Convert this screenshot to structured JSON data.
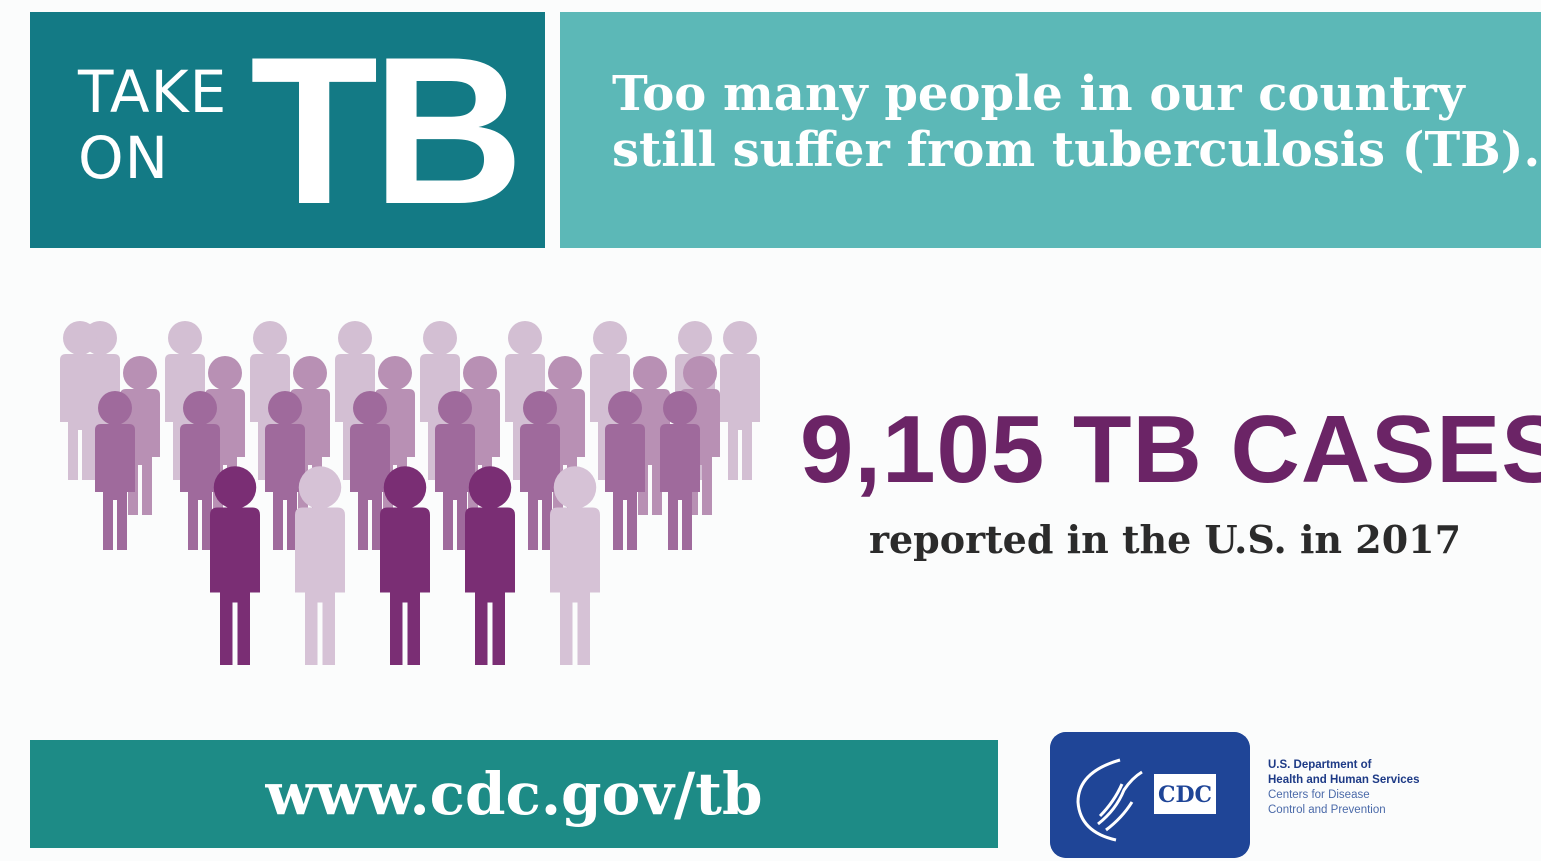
{
  "logo": {
    "take": "TAKE",
    "on": "ON",
    "tb": "TB"
  },
  "headline": {
    "line1": "Too many people in our country",
    "line2": "still suffer from tuberculosis (TB)."
  },
  "stat": {
    "headline": "9,105 TB CASES",
    "subtext": "reported in the U.S. in 2017"
  },
  "url": "www.cdc.gov/tb",
  "agency": {
    "badge_text": "CDC",
    "dept_line1": "U.S. Department of",
    "dept_line2": "Health and Human Services",
    "cdc_line1": "Centers for Disease",
    "cdc_line2": "Control and Prevention"
  },
  "colors": {
    "banner_dark": "#137a85",
    "banner_light": "#5cb8b7",
    "url_bar": "#1d8b86",
    "stat_purple": "#6b2466",
    "badge_blue": "#1f4597",
    "crowd_rows": [
      "#d3bfd3",
      "#b890b4",
      "#9f6a9c",
      "#7a2e74"
    ],
    "crowd_front_light": "#d6c2d6"
  }
}
